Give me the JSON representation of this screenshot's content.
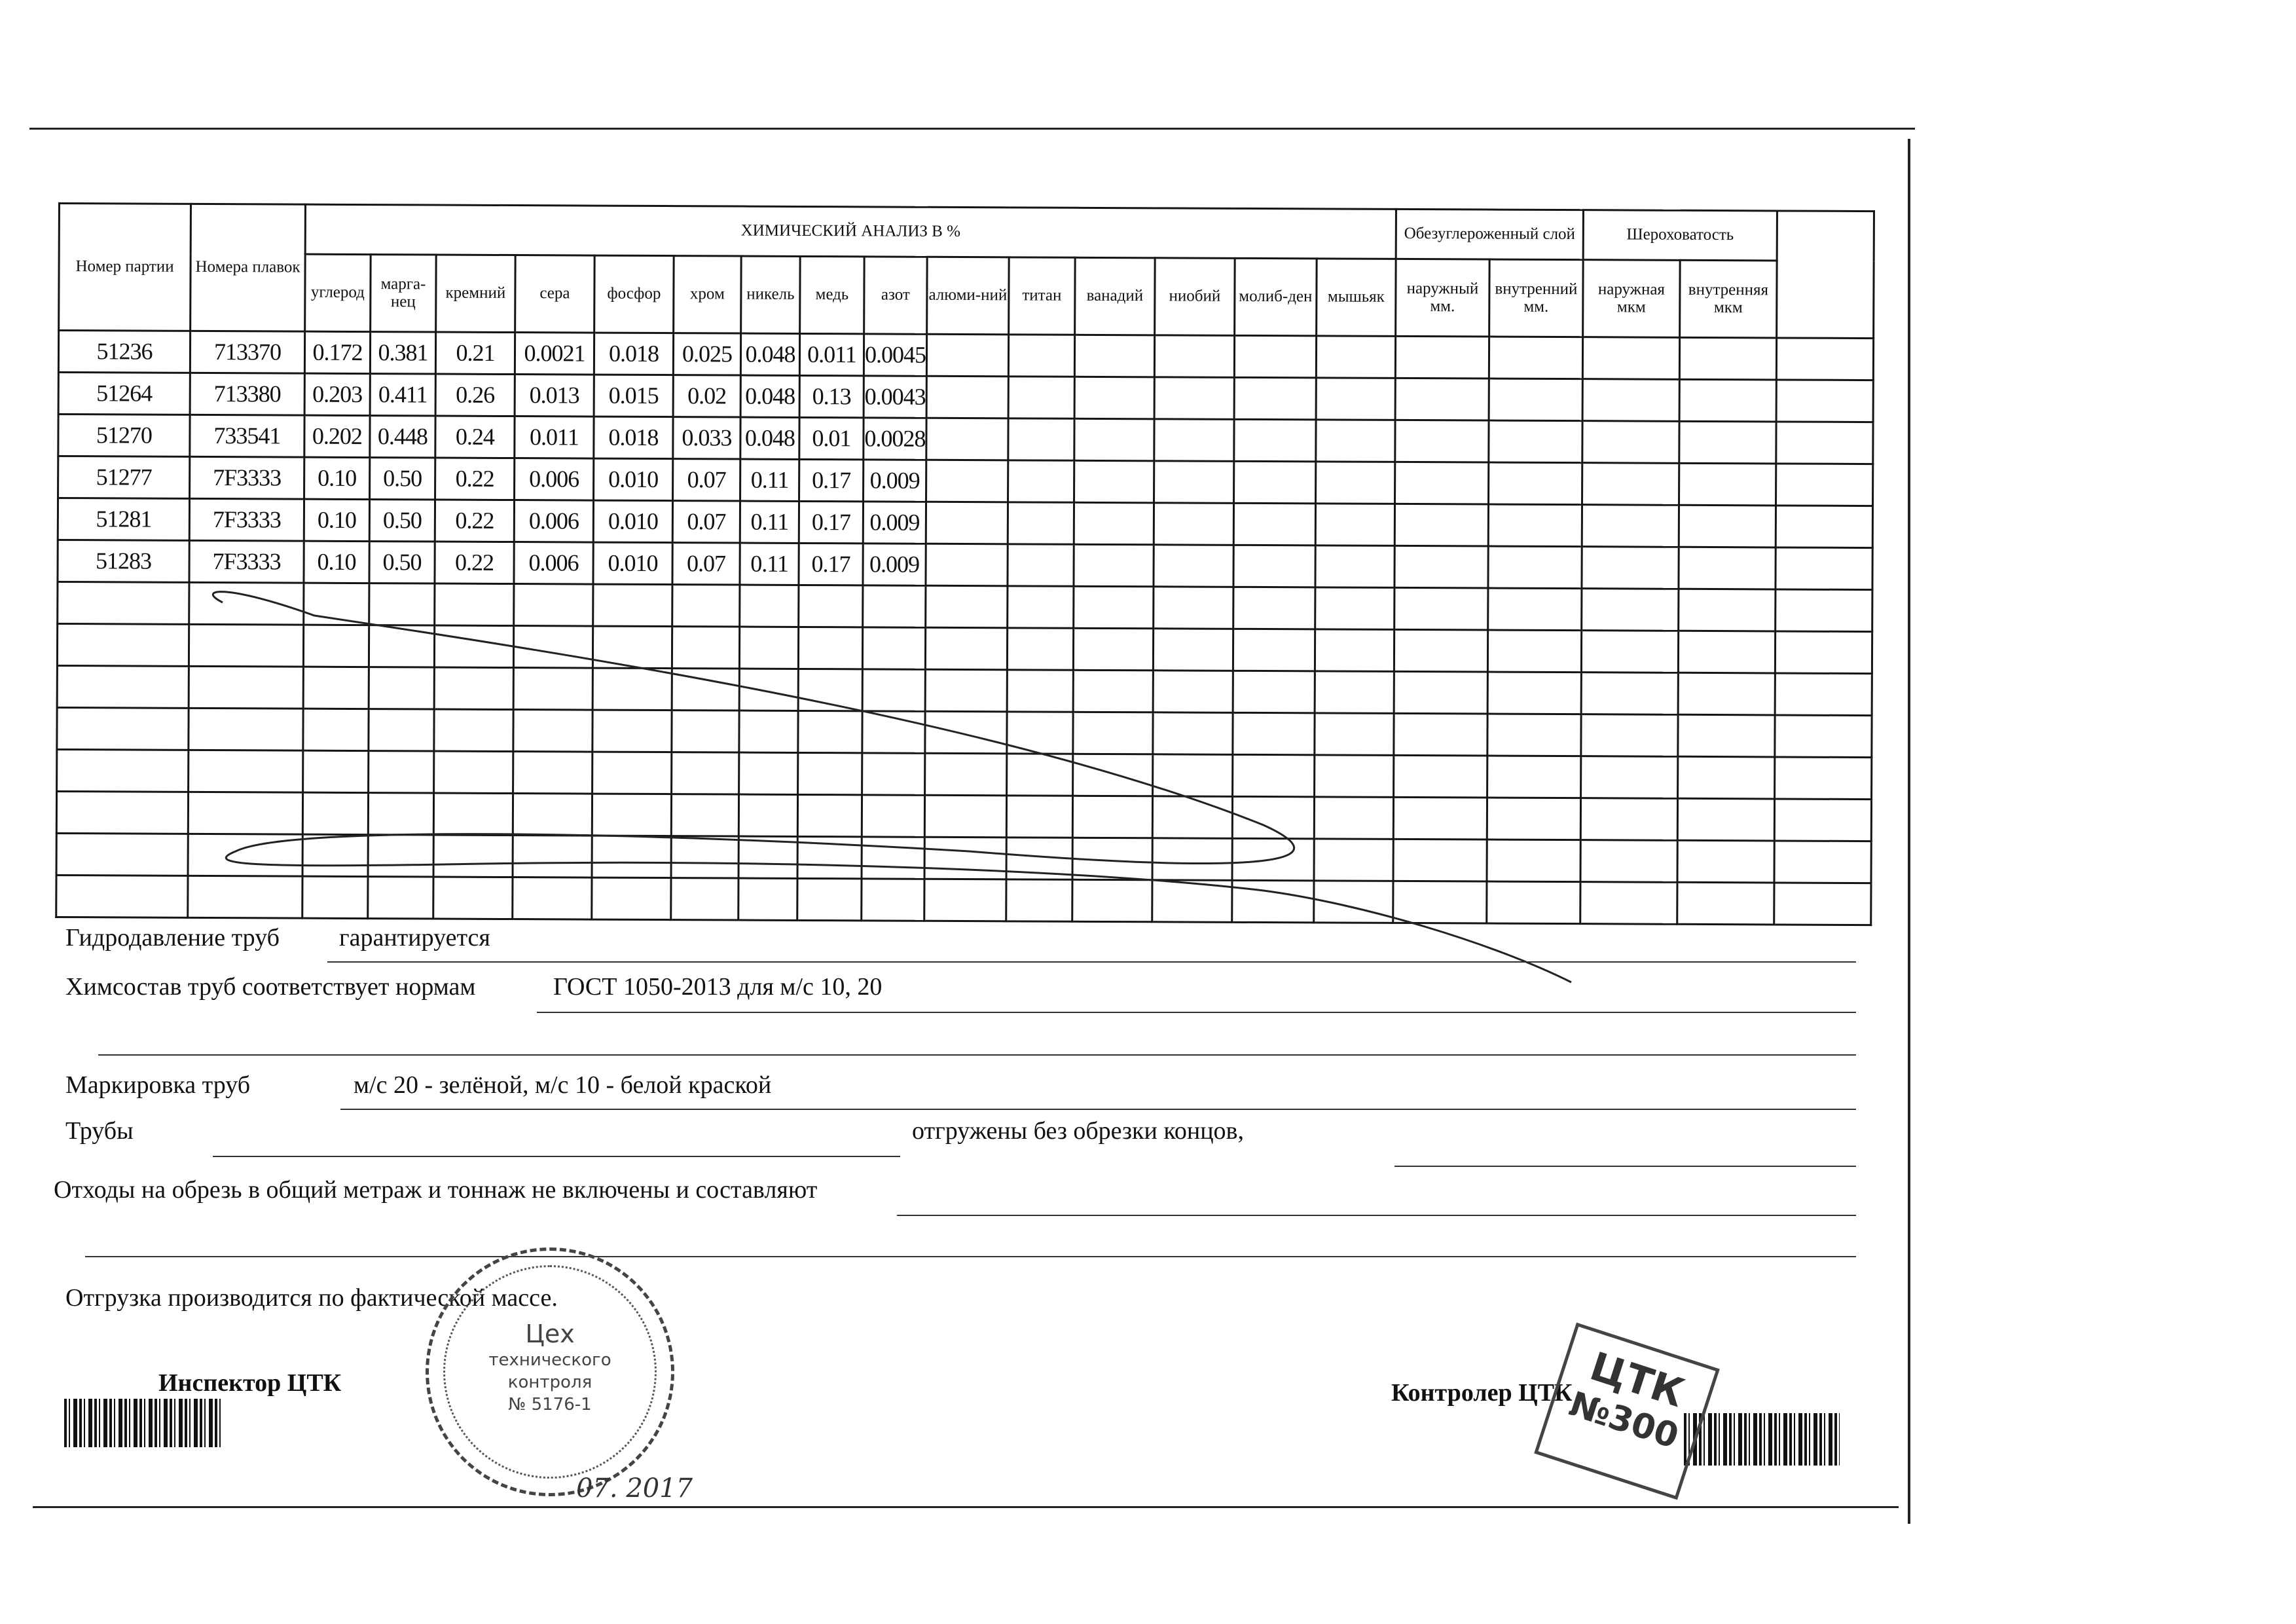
{
  "table": {
    "group_headers": {
      "batch_no": "Номер партии",
      "heat_no": "Номера плавок",
      "chem": "ХИМИЧЕСКИЙ АНАЛИЗ  В  %",
      "decarb": "Обезуглероженный слой",
      "roughness": "Шероховатость"
    },
    "element_headers": [
      "углерод",
      "марга-нец",
      "кремний",
      "сера",
      "фосфор",
      "хром",
      "никель",
      "медь",
      "азот",
      "алюми-ний",
      "титан",
      "ванадий",
      "ниобий",
      "молиб-ден",
      "мышьяк"
    ],
    "decarb_headers": [
      "наружный мм.",
      "внутренний мм."
    ],
    "roughness_headers": [
      "наружная мкм",
      "внутренняя мкм"
    ],
    "rows": [
      {
        "batch": "51236",
        "heat": "713370",
        "values": [
          "0.172",
          "0.381",
          "0.21",
          "0.0021",
          "0.018",
          "0.025",
          "0.048",
          "0.011",
          "0.0045"
        ]
      },
      {
        "batch": "51264",
        "heat": "713380",
        "values": [
          "0.203",
          "0.411",
          "0.26",
          "0.013",
          "0.015",
          "0.02",
          "0.048",
          "0.13",
          "0.0043"
        ]
      },
      {
        "batch": "51270",
        "heat": "733541",
        "values": [
          "0.202",
          "0.448",
          "0.24",
          "0.011",
          "0.018",
          "0.033",
          "0.048",
          "0.01",
          "0.0028"
        ]
      },
      {
        "batch": "51277",
        "heat": "7F3333",
        "values": [
          "0.10",
          "0.50",
          "0.22",
          "0.006",
          "0.010",
          "0.07",
          "0.11",
          "0.17",
          "0.009"
        ]
      },
      {
        "batch": "51281",
        "heat": "7F3333",
        "values": [
          "0.10",
          "0.50",
          "0.22",
          "0.006",
          "0.010",
          "0.07",
          "0.11",
          "0.17",
          "0.009"
        ]
      },
      {
        "batch": "51283",
        "heat": "7F3333",
        "values": [
          "0.10",
          "0.50",
          "0.22",
          "0.006",
          "0.010",
          "0.07",
          "0.11",
          "0.17",
          "0.009"
        ]
      }
    ]
  },
  "footer": {
    "hydro_label": "Гидродавление труб",
    "hydro_value": "гарантируется",
    "chem_label": "Химсостав труб соответствует нормам",
    "chem_value": "ГОСТ 1050-2013 для м/с 10, 20",
    "marking_label": "Маркировка труб",
    "marking_value": "м/с 20 - зелёной, м/с 10 - белой краской",
    "pipes_label": "Трубы",
    "pipes_value": "отгружены без обрезки концов,",
    "waste_label": "Отходы на обрезь в общий метраж и тоннаж не включены и составляют",
    "shipping_note": "Отгрузка производится по фактической массе.",
    "inspector_label": "Инспектор ЦТК",
    "controller_label": "Контролер ЦТК"
  },
  "stamp_round": {
    "line1": "Цех",
    "line2": "технического",
    "line3": "контроля",
    "line4": "№ 5176-1"
  },
  "stamp_square": {
    "line1": "ЦТК",
    "line2": "№300"
  },
  "handwritten_date": "07. 2017"
}
